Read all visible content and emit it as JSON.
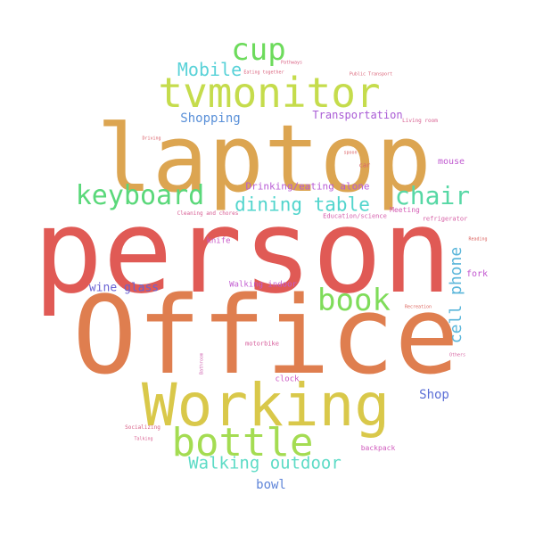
{
  "words": [
    {
      "text": "person",
      "color": "#e05a55"
    },
    {
      "text": "Office",
      "color": "#df7e4f"
    },
    {
      "text": "laptop",
      "color": "#dca551"
    },
    {
      "text": "Working",
      "color": "#d9c84a"
    },
    {
      "text": "tvmonitor",
      "color": "#c5dc4c"
    },
    {
      "text": "bottle",
      "color": "#a4dc52"
    },
    {
      "text": "book",
      "color": "#7fdc5a"
    },
    {
      "text": "cup",
      "color": "#6ddb5c"
    },
    {
      "text": "keyboard",
      "color": "#5ad87a"
    },
    {
      "text": "chair",
      "color": "#57d8a5"
    },
    {
      "text": "dining table",
      "color": "#52d5cd"
    },
    {
      "text": "Walking outdoor",
      "color": "#5ddbc6"
    },
    {
      "text": "Mobile",
      "color": "#59d2d8"
    },
    {
      "text": "cell phone",
      "color": "#59b5da"
    },
    {
      "text": "Shopping",
      "color": "#5a90d8"
    },
    {
      "text": "bowl",
      "color": "#5f85d8"
    },
    {
      "text": "Shop",
      "color": "#5b6fd6"
    },
    {
      "text": "wine glass",
      "color": "#6a62d3"
    },
    {
      "text": "Transportation",
      "color": "#a95bd5"
    },
    {
      "text": "Drinking/eating alone",
      "color": "#b85cd5"
    },
    {
      "text": "mouse",
      "color": "#c05bd0"
    },
    {
      "text": "fork",
      "color": "#c155cf"
    },
    {
      "text": "Walking indoor",
      "color": "#c15bd0"
    },
    {
      "text": "knife",
      "color": "#c859c7"
    },
    {
      "text": "clock",
      "color": "#cc58c3"
    },
    {
      "text": "backpack",
      "color": "#d05bbd"
    },
    {
      "text": "Meeting",
      "color": "#d45cb4"
    },
    {
      "text": "Education/science",
      "color": "#d45bab"
    },
    {
      "text": "refrigerator",
      "color": "#d55ba3"
    },
    {
      "text": "motorbike",
      "color": "#d65c9b"
    },
    {
      "text": "Cleaning and chores",
      "color": "#d75c93"
    },
    {
      "text": "Living room",
      "color": "#d75d8e"
    },
    {
      "text": "Socializing",
      "color": "#d85e86"
    },
    {
      "text": "Pathways",
      "color": "#d85e80"
    },
    {
      "text": "Eating together",
      "color": "#d95f7a"
    },
    {
      "text": "Public Transport",
      "color": "#d95f74"
    },
    {
      "text": "car",
      "color": "#da5f6e"
    },
    {
      "text": "Driving",
      "color": "#da6068"
    },
    {
      "text": "spoon",
      "color": "#db6063"
    },
    {
      "text": "Reading",
      "color": "#db615e"
    },
    {
      "text": "Recreation",
      "color": "#dc6159"
    },
    {
      "text": "Others",
      "color": "#d562a0"
    },
    {
      "text": "Bathroom",
      "color": "#cf63b0"
    },
    {
      "text": "Talking",
      "color": "#d85f90"
    }
  ]
}
